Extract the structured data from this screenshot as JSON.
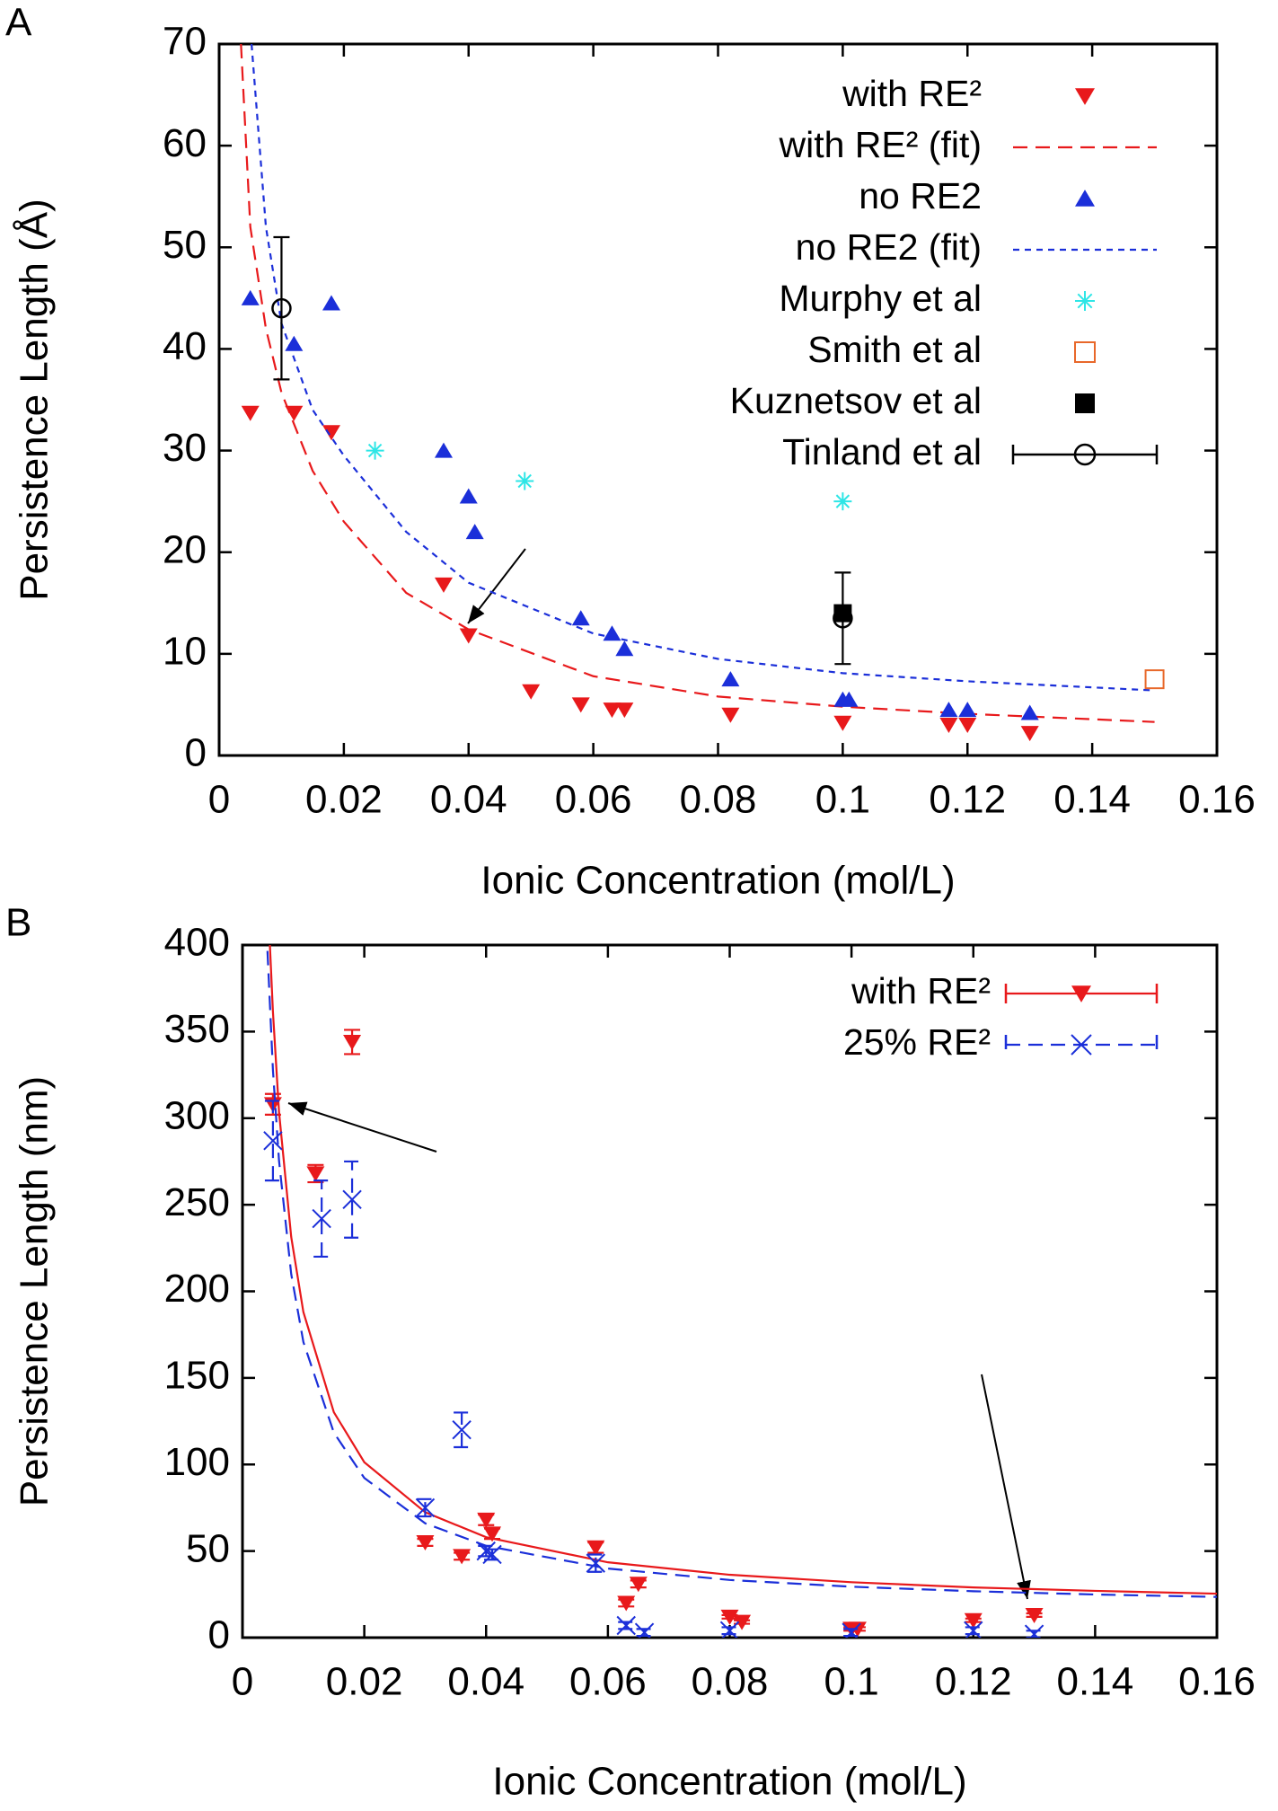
{
  "chart_data": [
    {
      "type": "scatter",
      "label": "A",
      "xlabel": "Ionic Concentration (mol/L)",
      "ylabel": "Persistence Length (Å)",
      "xlim": [
        0,
        0.16
      ],
      "ylim": [
        0,
        70
      ],
      "xticks": [
        0,
        0.02,
        0.04,
        0.06,
        0.08,
        0.1,
        0.12,
        0.14,
        0.16
      ],
      "yticks": [
        0,
        10,
        20,
        30,
        40,
        50,
        60,
        70
      ],
      "legend": "top-right",
      "series": [
        {
          "name": "with RE²",
          "color": "#e8191b",
          "marker": "triangle-down",
          "x": [
            0.005,
            0.012,
            0.018,
            0.036,
            0.04,
            0.05,
            0.058,
            0.063,
            0.065,
            0.082,
            0.1,
            0.117,
            0.12,
            0.13
          ],
          "values": [
            33.7,
            33.7,
            31.8,
            16.8,
            11.8,
            6.3,
            5,
            4.5,
            4.5,
            4,
            3.2,
            3,
            3,
            2.2
          ]
        },
        {
          "name": "with RE² (fit)",
          "color": "#e8191b",
          "line": "dashed",
          "x": [
            0.0035,
            0.005,
            0.0075,
            0.01,
            0.015,
            0.02,
            0.03,
            0.04,
            0.06,
            0.08,
            0.1,
            0.12,
            0.15
          ],
          "values": [
            70,
            52,
            42,
            35.7,
            28,
            23,
            16,
            12.4,
            7.8,
            5.8,
            4.8,
            4.1,
            3.3
          ]
        },
        {
          "name": "no RE2",
          "color": "#1b2fd9",
          "marker": "triangle-up",
          "x": [
            0.005,
            0.012,
            0.018,
            0.036,
            0.04,
            0.041,
            0.058,
            0.063,
            0.065,
            0.082,
            0.1,
            0.101,
            0.117,
            0.12,
            0.13
          ],
          "values": [
            45,
            40.5,
            44.5,
            30,
            25.5,
            22,
            13.5,
            12,
            10.5,
            7.5,
            5.5,
            5.5,
            4.5,
            4.5,
            4.2
          ]
        },
        {
          "name": "no RE2 (fit)",
          "color": "#1b2fd9",
          "line": "dotted",
          "x": [
            0.0052,
            0.0075,
            0.01,
            0.015,
            0.02,
            0.03,
            0.04,
            0.06,
            0.08,
            0.1,
            0.12,
            0.15
          ],
          "values": [
            70,
            52,
            42.5,
            34,
            29.5,
            22,
            17,
            12,
            9.5,
            8.1,
            7.3,
            6.4
          ]
        },
        {
          "name": "Murphy et al",
          "color": "#2ee6e6",
          "marker": "asterisk",
          "x": [
            0.025,
            0.049,
            0.1
          ],
          "values": [
            30,
            27,
            25
          ]
        },
        {
          "name": "Smith et al",
          "color": "#e8682a",
          "marker": "square-open",
          "x": [
            0.15
          ],
          "values": [
            7.5
          ]
        },
        {
          "name": "Kuznetsov et al",
          "color": "#000000",
          "marker": "square",
          "x": [
            0.1
          ],
          "values": [
            14
          ]
        },
        {
          "name": "Tinland et al",
          "color": "#000000",
          "marker": "circle-open",
          "x": [
            0.01,
            0.1
          ],
          "values": [
            44,
            13.5
          ],
          "errors": [
            7,
            4.5
          ]
        }
      ]
    },
    {
      "type": "scatter",
      "label": "B",
      "xlabel": "Ionic Concentration (mol/L)",
      "ylabel": "Persistence Length (nm)",
      "xlim": [
        0,
        0.16
      ],
      "ylim": [
        0,
        400
      ],
      "xticks": [
        0,
        0.02,
        0.04,
        0.06,
        0.08,
        0.1,
        0.12,
        0.14,
        0.16
      ],
      "yticks": [
        0,
        50,
        100,
        150,
        200,
        250,
        300,
        350,
        400
      ],
      "legend": "top-right",
      "series": [
        {
          "name": "with RE²",
          "color": "#e8191b",
          "marker": "triangle-down",
          "line": "solid",
          "x": [
            0.005,
            0.012,
            0.018,
            0.03,
            0.036,
            0.04,
            0.041,
            0.058,
            0.063,
            0.065,
            0.08,
            0.082,
            0.1,
            0.101,
            0.12,
            0.13
          ],
          "values": [
            308,
            268,
            344,
            55,
            47,
            68,
            60,
            52,
            20,
            31,
            12,
            9,
            5,
            5,
            10,
            13
          ],
          "errors": [
            6,
            5,
            7,
            2,
            2,
            3,
            3,
            3,
            2,
            2,
            1,
            1,
            1,
            1,
            1,
            1
          ],
          "fit_x": [
            0.0045,
            0.005,
            0.006,
            0.008,
            0.01,
            0.015,
            0.02,
            0.03,
            0.04,
            0.06,
            0.08,
            0.1,
            0.12,
            0.14,
            0.16
          ],
          "fit": [
            400,
            361.4,
            303.6,
            231.4,
            188,
            130.2,
            101.3,
            72.4,
            58,
            43.5,
            36.3,
            32,
            29,
            27,
            25.4
          ]
        },
        {
          "name": "25% RE²",
          "color": "#1b2fd9",
          "marker": "x",
          "line": "dashed",
          "x": [
            0.005,
            0.013,
            0.018,
            0.03,
            0.036,
            0.04,
            0.041,
            0.058,
            0.063,
            0.066,
            0.08,
            0.1,
            0.12,
            0.13
          ],
          "values": [
            287,
            242,
            253,
            75,
            120,
            50,
            48,
            43,
            7,
            3,
            4,
            3,
            4,
            2
          ],
          "errors": [
            23,
            22,
            22,
            5,
            10,
            3,
            3,
            5,
            2,
            2,
            2,
            2,
            2,
            2
          ],
          "fit_x": [
            0.0041,
            0.005,
            0.006,
            0.008,
            0.01,
            0.015,
            0.02,
            0.03,
            0.04,
            0.06,
            0.08,
            0.1,
            0.12,
            0.14,
            0.16
          ],
          "fit": [
            396.6,
            327.7,
            275.4,
            210,
            170.7,
            118.4,
            92.2,
            66,
            53,
            39.9,
            33.3,
            29.4,
            26.8,
            24.9,
            23.5
          ]
        }
      ]
    }
  ]
}
